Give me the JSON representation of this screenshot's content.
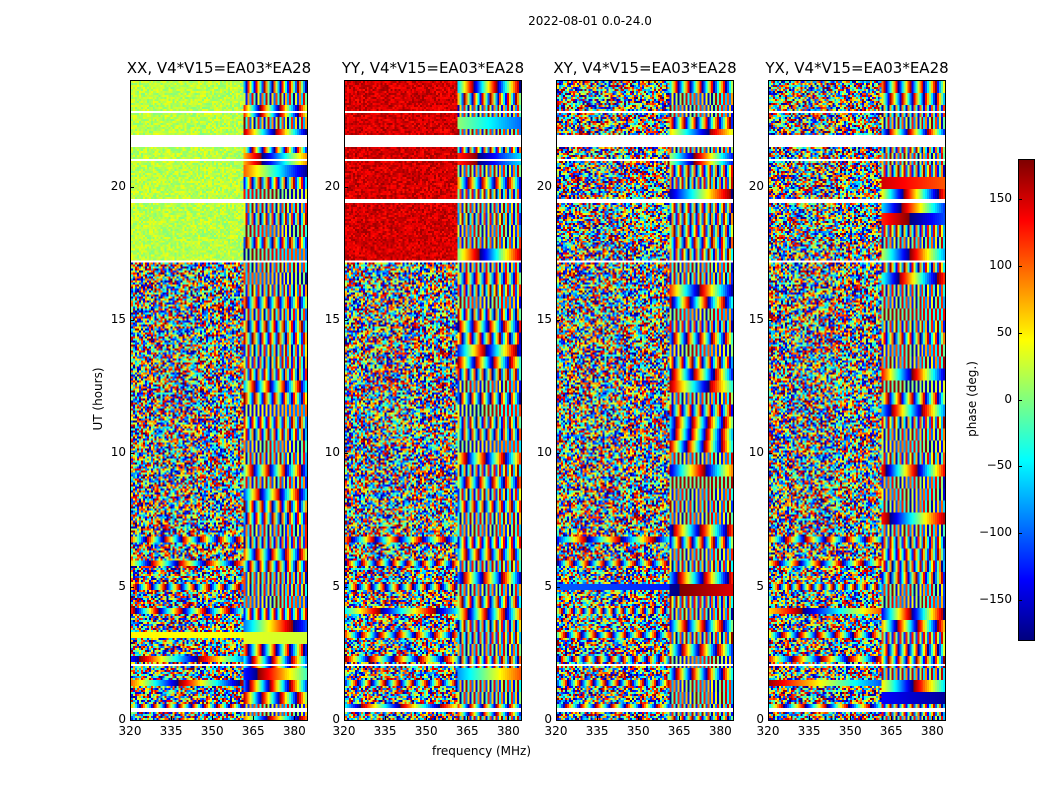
{
  "chart_data": [
    {
      "type": "heatmap",
      "suptitle": "2022-08-01 0.0-24.0",
      "panels": [
        {
          "title": "XX, V4*V15=EA03*EA28",
          "smooth_phase_deg": 20
        },
        {
          "title": "YY, V4*V15=EA03*EA28",
          "smooth_phase_deg": 150
        },
        {
          "title": "XY, V4*V15=EA03*EA28",
          "smooth_phase_deg": null
        },
        {
          "title": "YX, V4*V15=EA03*EA28",
          "smooth_phase_deg": null
        }
      ],
      "xlabel": "frequency (MHz)",
      "ylabel": "UT (hours)",
      "xlim": [
        320,
        385
      ],
      "ylim": [
        0,
        24
      ],
      "xticks": [
        "320",
        "335",
        "350",
        "365",
        "380"
      ],
      "xtick_values": [
        320,
        335,
        350,
        365,
        380
      ],
      "yticks": [
        "0",
        "5",
        "10",
        "15",
        "20"
      ],
      "ytick_values": [
        0,
        5,
        10,
        15,
        20
      ],
      "flagged_hours": [
        [
          0.3,
          0.45
        ],
        [
          21.5,
          22.0
        ],
        [
          19.4,
          19.6
        ],
        [
          22.8,
          22.85
        ],
        [
          21.0,
          21.05
        ],
        [
          17.2,
          17.25
        ],
        [
          12.5,
          12.55
        ],
        [
          5.9,
          5.95
        ],
        [
          2.05,
          2.1
        ]
      ],
      "colorbar": {
        "label": "phase (deg.)",
        "range": [
          -180,
          180
        ],
        "ticks": [
          "150",
          "100",
          "50",
          "0",
          "−50",
          "−100",
          "−150"
        ],
        "tick_values": [
          150,
          100,
          50,
          0,
          -50,
          -100,
          -150
        ],
        "colormap": "jet"
      }
    }
  ]
}
